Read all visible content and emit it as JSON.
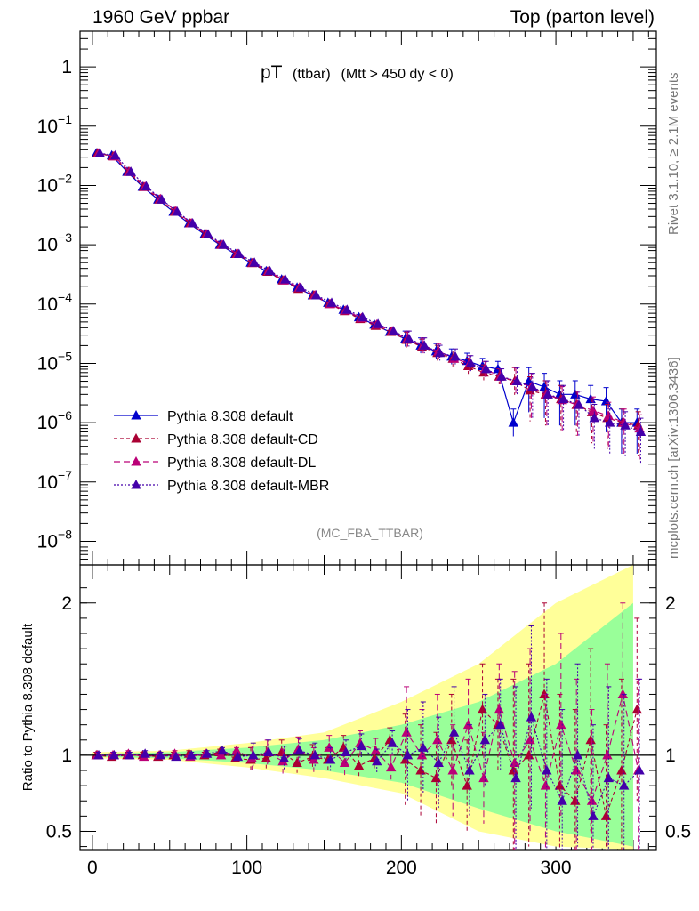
{
  "header": {
    "left": "1960 GeV ppbar",
    "right": "Top (parton level)"
  },
  "side_labels": {
    "rivet": "Rivet 3.1.10, ≥ 2.1M events",
    "mcplots": "mcplots.cern.ch [arXiv:1306.3436]"
  },
  "chart_data": [
    {
      "type": "line",
      "panel": "main",
      "title_main": "pT",
      "title_sub": "(ttbar)",
      "title_cond": "(Mtt > 450 dy < 0)",
      "analysis_label": "(MC_FBA_TTBAR)",
      "xlabel": "",
      "ylabel": "",
      "xlim": [
        -8,
        365
      ],
      "ylim": [
        4e-09,
        4
      ],
      "log_y": true,
      "x_ticks": [
        0,
        100,
        200,
        300
      ],
      "y_ticks": [
        1,
        0.1,
        0.01,
        0.001,
        0.0001,
        1e-05,
        1e-06,
        1e-07,
        1e-08
      ],
      "y_tick_labels": [
        {
          "base": "1",
          "exp": ""
        },
        {
          "base": "10",
          "exp": "−1"
        },
        {
          "base": "10",
          "exp": "−2"
        },
        {
          "base": "10",
          "exp": "−3"
        },
        {
          "base": "10",
          "exp": "−4"
        },
        {
          "base": "10",
          "exp": "−5"
        },
        {
          "base": "10",
          "exp": "−6"
        },
        {
          "base": "10",
          "exp": "−7"
        },
        {
          "base": "10",
          "exp": "−8"
        }
      ],
      "legend_position": "lower-left",
      "x": [
        0,
        10,
        20,
        30,
        40,
        50,
        60,
        70,
        80,
        90,
        100,
        110,
        120,
        130,
        140,
        150,
        160,
        170,
        180,
        190,
        200,
        210,
        220,
        230,
        240,
        250,
        260,
        270,
        280,
        290,
        300,
        310,
        320,
        330,
        340,
        350
      ],
      "series": [
        {
          "name": "Pythia 8.308 default",
          "color": "#0000cc",
          "dash": "",
          "values": [
            0.035,
            0.032,
            0.017,
            0.0095,
            0.0058,
            0.0036,
            0.0023,
            0.0015,
            0.001,
            0.0007,
            0.0005,
            0.00036,
            0.00026,
            0.00019,
            0.00014,
            0.000105,
            8e-05,
            6e-05,
            4.5e-05,
            3.4e-05,
            2.6e-05,
            2e-05,
            1.6e-05,
            1.3e-05,
            1.1e-05,
            9e-06,
            8e-06,
            1e-06,
            5e-06,
            4e-06,
            3e-06,
            3e-06,
            2.5e-06,
            2.3e-06,
            1e-06,
            1e-06
          ]
        },
        {
          "name": "Pythia 8.308 default-CD",
          "color": "#aa0033",
          "dash": "4,3",
          "values": [
            0.035,
            0.031,
            0.017,
            0.0094,
            0.0058,
            0.0036,
            0.0023,
            0.0015,
            0.001,
            0.0007,
            0.00049,
            0.00035,
            0.00025,
            0.00018,
            0.00014,
            0.0001,
            7.6e-05,
            5.6e-05,
            4.3e-05,
            3.4e-05,
            2.5e-05,
            1.9e-05,
            1.5e-05,
            1.2e-05,
            9e-06,
            7e-06,
            6e-06,
            5e-06,
            3.5e-06,
            3e-06,
            2.5e-06,
            2e-06,
            1.5e-06,
            1.2e-06,
            1e-06,
            9e-07
          ]
        },
        {
          "name": "Pythia 8.308 default-DL",
          "color": "#bb0077",
          "dash": "7,4",
          "values": [
            0.035,
            0.031,
            0.017,
            0.0095,
            0.0059,
            0.0037,
            0.0023,
            0.0015,
            0.001,
            0.0007,
            0.0005,
            0.00036,
            0.00025,
            0.00019,
            0.00014,
            0.0001,
            7.8e-05,
            5.8e-05,
            4.5e-05,
            3.5e-05,
            2.6e-05,
            2e-05,
            1.6e-05,
            1.2e-05,
            1e-05,
            8e-06,
            6e-06,
            5e-06,
            4e-06,
            3e-06,
            2.4e-06,
            2e-06,
            1.6e-06,
            1.3e-06,
            1e-06,
            8e-07
          ]
        },
        {
          "name": "Pythia 8.308 default-MBR",
          "color": "#4400aa",
          "dash": "2,2",
          "values": [
            0.035,
            0.032,
            0.017,
            0.0096,
            0.0058,
            0.0036,
            0.0023,
            0.0015,
            0.001,
            0.0007,
            0.0005,
            0.00036,
            0.00026,
            0.00019,
            0.00014,
            0.000105,
            8e-05,
            6e-05,
            4.6e-05,
            3.5e-05,
            2.6e-05,
            2e-05,
            1.5e-05,
            1.3e-05,
            1e-05,
            8e-06,
            6e-06,
            5e-06,
            4e-06,
            3e-06,
            2.5e-06,
            2e-06,
            1.2e-06,
            1e-06,
            9e-07,
            7e-07
          ]
        }
      ]
    },
    {
      "type": "line",
      "panel": "ratio",
      "xlabel": "",
      "ylabel": "Ratio to Pythia 8.308 default",
      "xlim": [
        -8,
        365
      ],
      "ylim": [
        0.38,
        2.25
      ],
      "reference": 1,
      "x_ticks": [
        0,
        100,
        200,
        300
      ],
      "y_ticks": [
        0.5,
        1,
        2
      ],
      "y_tick_labels": [
        "0.5",
        "1",
        "2"
      ],
      "bands": [
        {
          "color": "#ffff99",
          "x": [
            0,
            50,
            100,
            150,
            200,
            250,
            300,
            350
          ],
          "lo": [
            0.98,
            0.97,
            0.92,
            0.85,
            0.75,
            0.5,
            0.4,
            0.38
          ],
          "hi": [
            1.02,
            1.03,
            1.08,
            1.15,
            1.35,
            1.6,
            2.0,
            2.25
          ]
        },
        {
          "color": "#99ff99",
          "x": [
            0,
            50,
            100,
            150,
            200,
            250,
            300,
            350
          ],
          "lo": [
            0.99,
            0.98,
            0.95,
            0.9,
            0.82,
            0.65,
            0.5,
            0.4
          ],
          "hi": [
            1.01,
            1.02,
            1.05,
            1.1,
            1.2,
            1.35,
            1.6,
            2.0
          ]
        }
      ],
      "x": [
        0,
        10,
        20,
        30,
        40,
        50,
        60,
        70,
        80,
        90,
        100,
        110,
        120,
        130,
        140,
        150,
        160,
        170,
        180,
        190,
        200,
        210,
        220,
        230,
        240,
        250,
        260,
        270,
        280,
        290,
        300,
        310,
        320,
        330,
        340,
        350
      ],
      "series": [
        {
          "name": "Pythia 8.308 default-CD",
          "color": "#aa0033",
          "dash": "4,3",
          "values": [
            1.0,
            0.99,
            1.0,
            1.0,
            0.99,
            1.0,
            1.01,
            1.0,
            1.02,
            0.98,
            0.97,
            0.98,
            1.02,
            0.95,
            0.99,
            0.97,
            1.05,
            0.93,
            0.98,
            1.1,
            0.97,
            0.9,
            0.85,
            1.1,
            0.8,
            1.3,
            1.2,
            0.9,
            1.0,
            1.4,
            0.8,
            0.7,
            1.1,
            0.6,
            0.9,
            1.3
          ]
        },
        {
          "name": "Pythia 8.308 default-DL",
          "color": "#bb0077",
          "dash": "7,4",
          "values": [
            1.0,
            1.0,
            1.01,
            0.99,
            1.0,
            1.01,
            0.99,
            1.01,
            1.0,
            1.03,
            0.98,
            1.02,
            0.96,
            1.04,
            0.97,
            1.05,
            0.95,
            1.08,
            1.03,
            0.92,
            1.15,
            1.0,
            1.1,
            0.9,
            1.2,
            0.85,
            1.3,
            0.95,
            1.1,
            0.8,
            1.2,
            0.9,
            0.7,
            1.0,
            1.4,
            0.9
          ]
        },
        {
          "name": "Pythia 8.308 default-MBR",
          "color": "#4400aa",
          "dash": "2,2",
          "values": [
            1.0,
            1.0,
            1.0,
            1.01,
            1.0,
            0.99,
            1.0,
            1.01,
            1.03,
            0.99,
            1.0,
            1.02,
            0.98,
            1.03,
            1.0,
            0.97,
            1.02,
            1.06,
            0.96,
            1.08,
            1.0,
            1.05,
            0.95,
            1.15,
            0.9,
            1.1,
            1.2,
            0.85,
            1.25,
            0.9,
            0.7,
            1.0,
            0.6,
            0.85,
            0.8,
            0.9
          ]
        }
      ]
    }
  ]
}
